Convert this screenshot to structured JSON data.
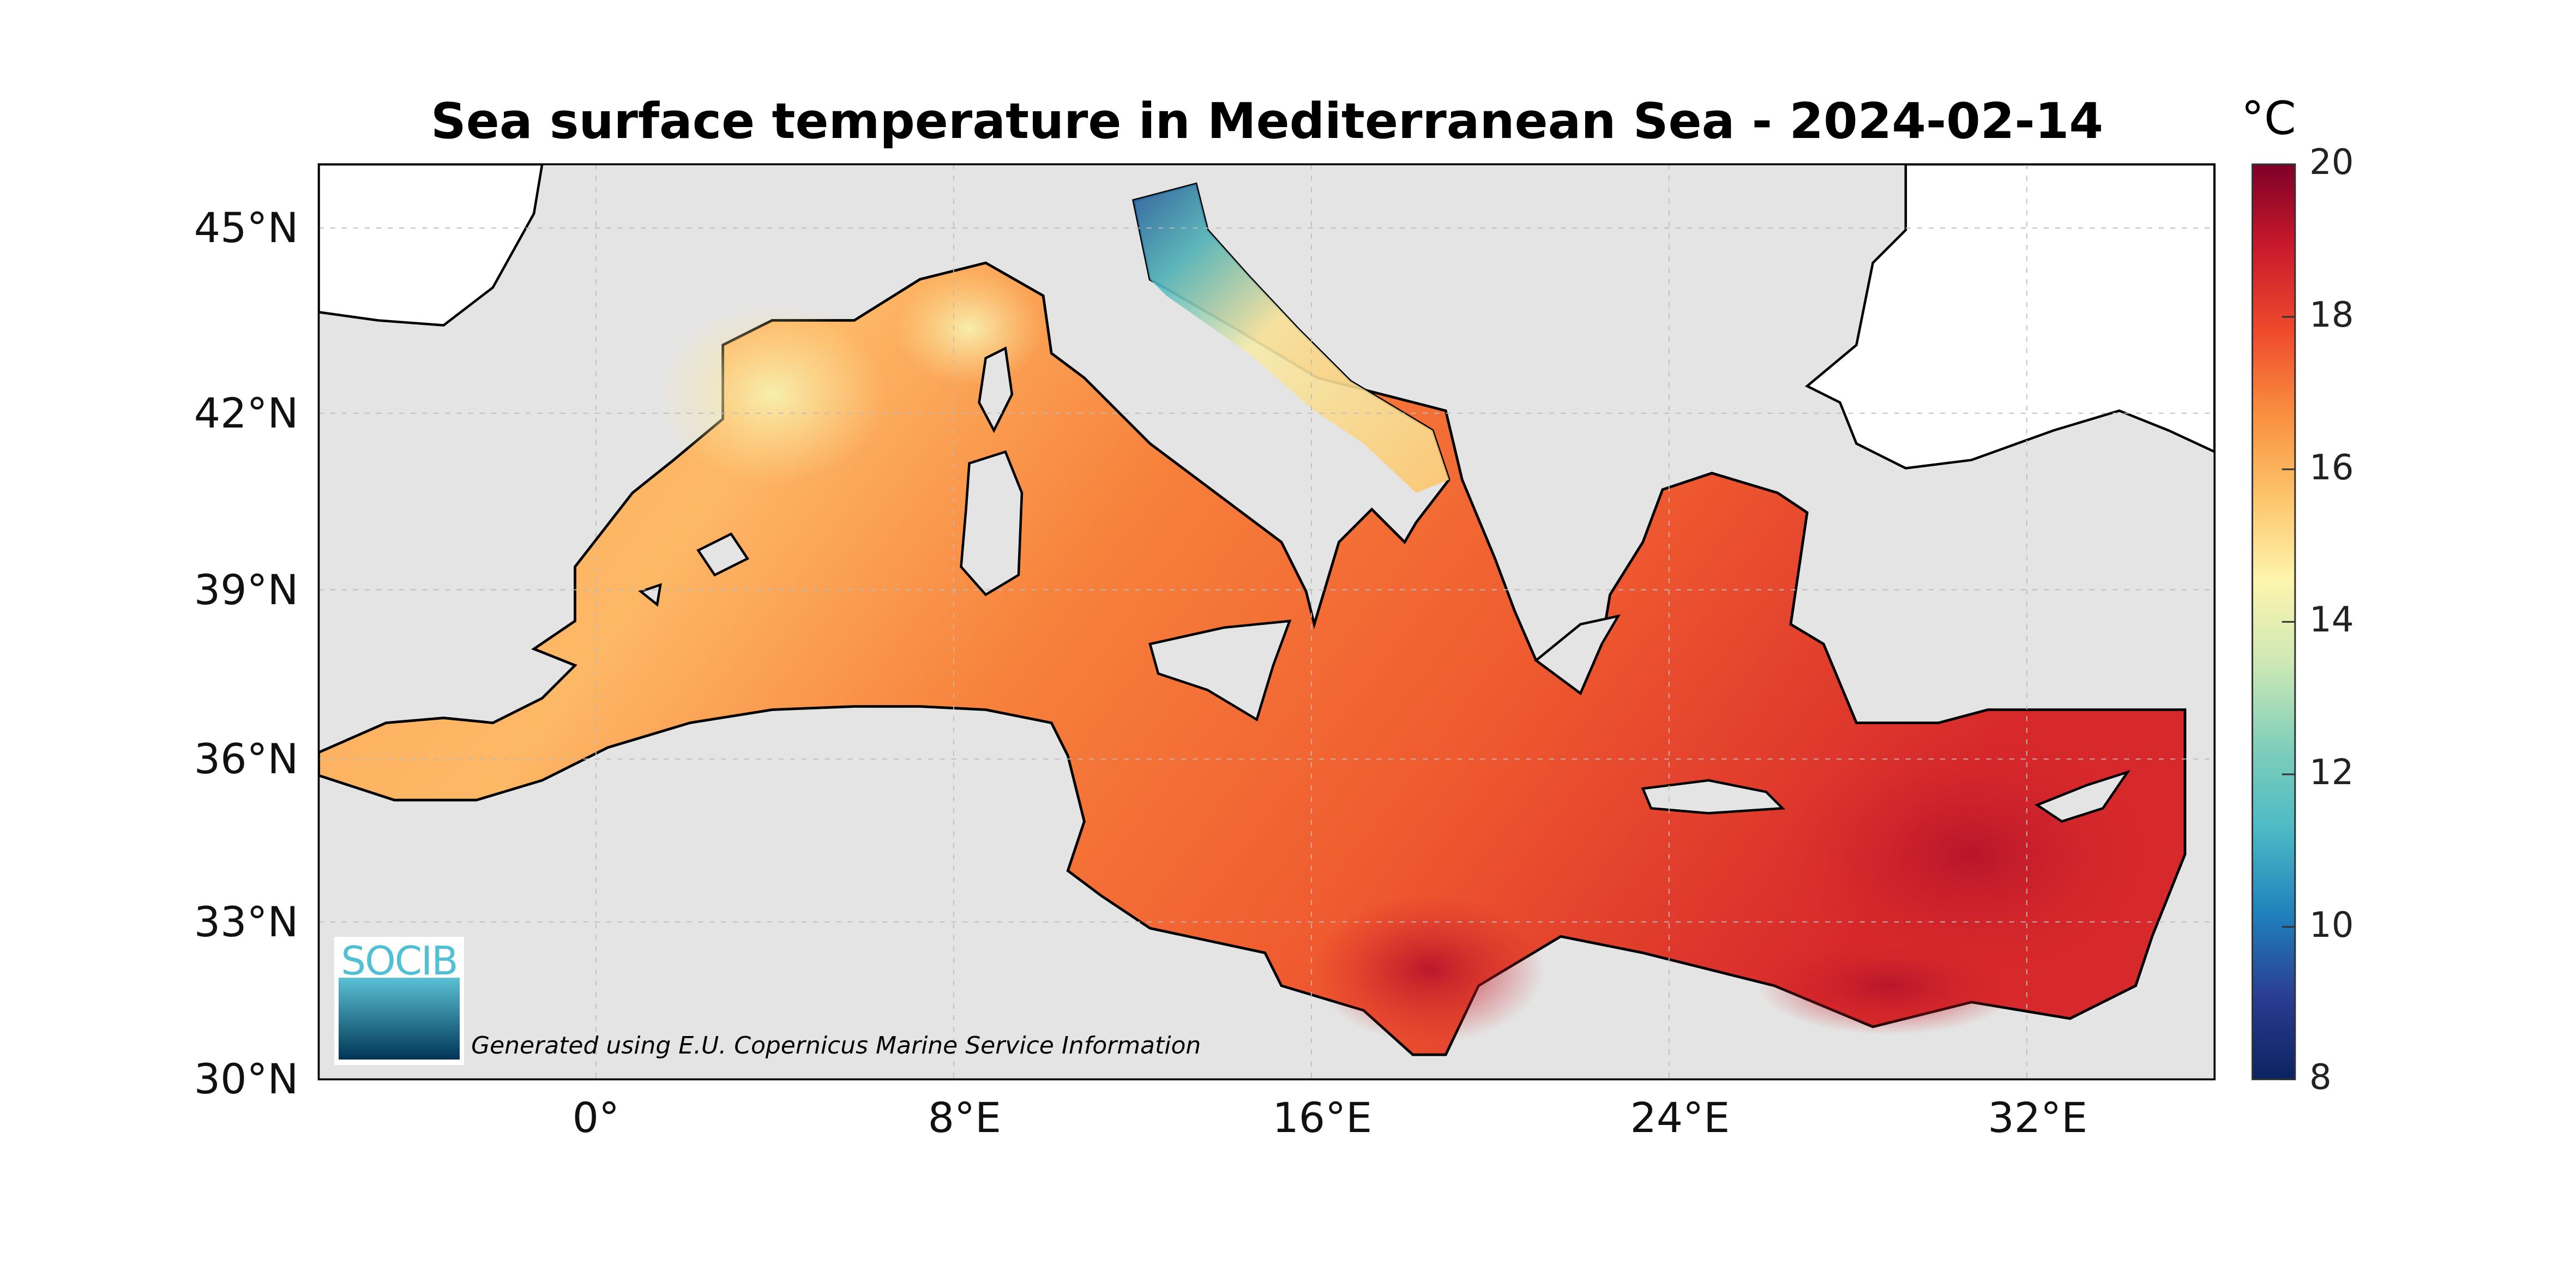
{
  "title": "Sea surface temperature in Mediterranean Sea - 2024-02-14",
  "colorbar": {
    "unit": "°C",
    "min": 8,
    "max": 20,
    "ticks": [
      "20",
      "18",
      "16",
      "14",
      "12",
      "10",
      "8"
    ],
    "colormap": "Spectral_r",
    "stops": [
      "#0b2360",
      "#2a3d92",
      "#1f82bc",
      "#4cbac6",
      "#80cfba",
      "#cde8b4",
      "#fdf5ad",
      "#fdc46a",
      "#f98f3f",
      "#ee4a2c",
      "#c91a2c",
      "#7f0026"
    ]
  },
  "axes": {
    "lat_labels": [
      "45°N",
      "42°N",
      "39°N",
      "36°N",
      "33°N",
      "30°N"
    ],
    "lon_labels": [
      "0°",
      "8°E",
      "16°E",
      "24°E",
      "32°E"
    ],
    "lon_range": [
      -6.2,
      36.2
    ],
    "lat_range": [
      30,
      46
    ],
    "grid": true
  },
  "credit": "Generated using E.U. Copernicus Marine Service Information",
  "logo": {
    "text": "SOCIB"
  },
  "colors": {
    "land": "#e4e4e4",
    "outside_domain": "#ffffff",
    "coastline": "#000000"
  }
}
